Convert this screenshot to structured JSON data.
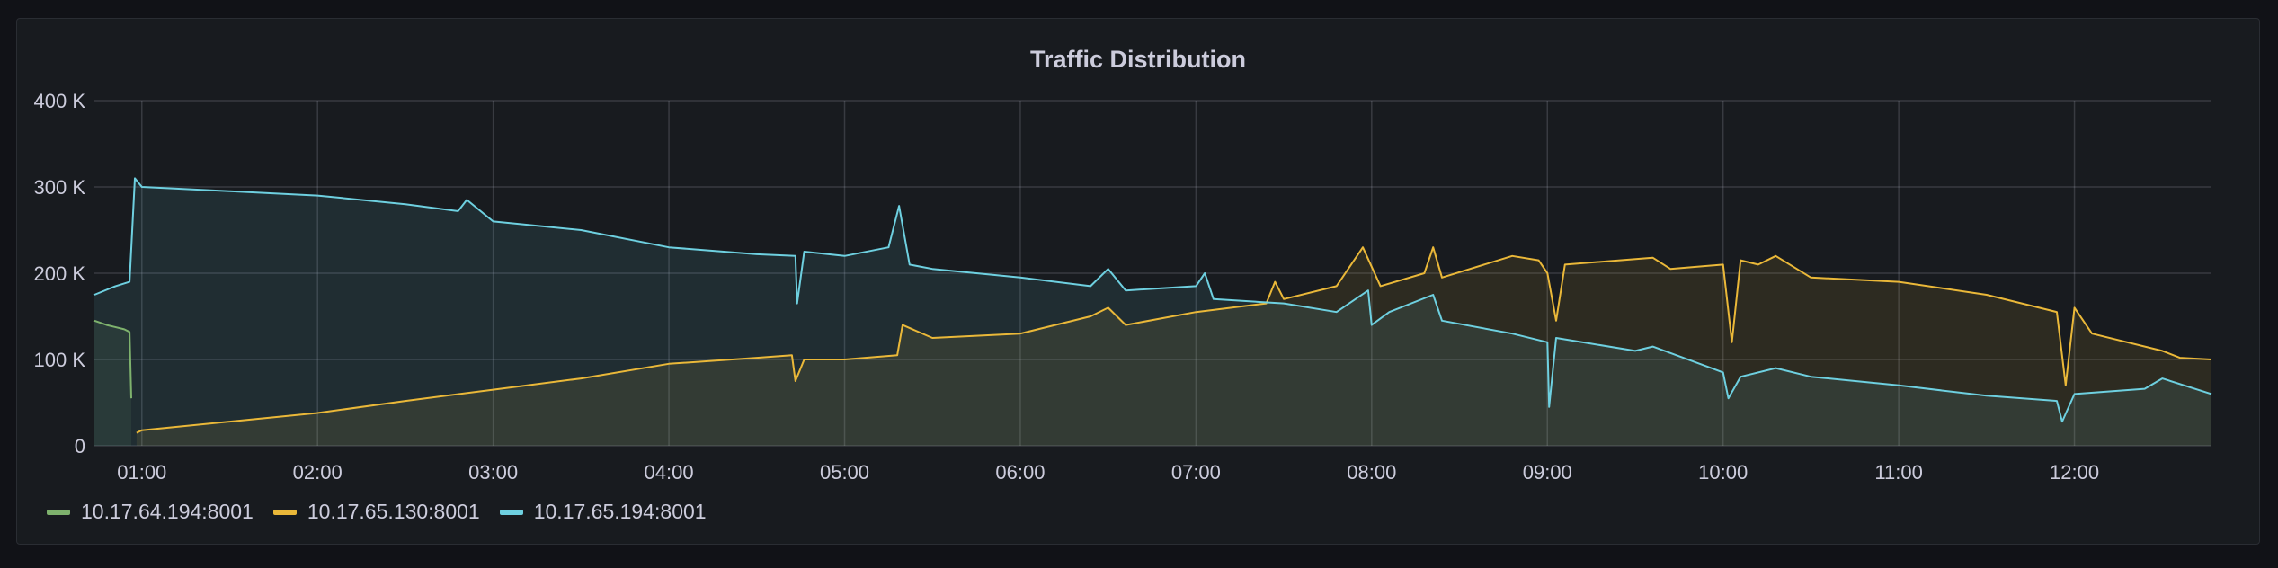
{
  "chart_data": {
    "type": "area",
    "title": "Traffic Distribution",
    "xlabel": "",
    "ylabel": "",
    "x_ticks": [
      "01:00",
      "02:00",
      "03:00",
      "04:00",
      "05:00",
      "06:00",
      "07:00",
      "08:00",
      "09:00",
      "10:00",
      "11:00",
      "12:00"
    ],
    "y_ticks": [
      "0",
      "100 K",
      "200 K",
      "300 K",
      "400 K"
    ],
    "xlim_hours": [
      0.73,
      12.78
    ],
    "ylim": [
      0,
      400000
    ],
    "grid": true,
    "legend_placement": "bottom-left",
    "series": [
      {
        "name": "10.17.64.194:8001",
        "color": "#7eb26d",
        "points": [
          [
            0.73,
            145000
          ],
          [
            0.8,
            140000
          ],
          [
            0.9,
            135000
          ],
          [
            0.93,
            132000
          ],
          [
            0.94,
            55000
          ]
        ]
      },
      {
        "name": "10.17.65.130:8001",
        "color": "#eab839",
        "points": [
          [
            0.97,
            15000
          ],
          [
            1.0,
            18000
          ],
          [
            1.5,
            28000
          ],
          [
            2.0,
            38000
          ],
          [
            2.5,
            52000
          ],
          [
            3.0,
            65000
          ],
          [
            3.5,
            78000
          ],
          [
            4.0,
            95000
          ],
          [
            4.5,
            102000
          ],
          [
            4.7,
            105000
          ],
          [
            4.72,
            75000
          ],
          [
            4.77,
            100000
          ],
          [
            5.0,
            100000
          ],
          [
            5.3,
            105000
          ],
          [
            5.33,
            140000
          ],
          [
            5.5,
            125000
          ],
          [
            6.0,
            130000
          ],
          [
            6.4,
            150000
          ],
          [
            6.5,
            160000
          ],
          [
            6.6,
            140000
          ],
          [
            7.0,
            155000
          ],
          [
            7.4,
            165000
          ],
          [
            7.45,
            190000
          ],
          [
            7.5,
            170000
          ],
          [
            7.8,
            185000
          ],
          [
            7.95,
            230000
          ],
          [
            8.05,
            185000
          ],
          [
            8.3,
            200000
          ],
          [
            8.35,
            230000
          ],
          [
            8.4,
            195000
          ],
          [
            8.8,
            220000
          ],
          [
            8.95,
            215000
          ],
          [
            9.0,
            200000
          ],
          [
            9.05,
            145000
          ],
          [
            9.1,
            210000
          ],
          [
            9.6,
            218000
          ],
          [
            9.7,
            205000
          ],
          [
            10.0,
            210000
          ],
          [
            10.05,
            120000
          ],
          [
            10.1,
            215000
          ],
          [
            10.2,
            210000
          ],
          [
            10.3,
            220000
          ],
          [
            10.5,
            195000
          ],
          [
            11.0,
            190000
          ],
          [
            11.5,
            175000
          ],
          [
            11.9,
            155000
          ],
          [
            11.95,
            70000
          ],
          [
            12.0,
            160000
          ],
          [
            12.1,
            130000
          ],
          [
            12.5,
            110000
          ],
          [
            12.6,
            102000
          ],
          [
            12.78,
            100000
          ]
        ]
      },
      {
        "name": "10.17.65.194:8001",
        "color": "#6ed0e0",
        "points": [
          [
            0.73,
            175000
          ],
          [
            0.85,
            185000
          ],
          [
            0.93,
            190000
          ],
          [
            0.96,
            310000
          ],
          [
            1.0,
            300000
          ],
          [
            1.5,
            295000
          ],
          [
            2.0,
            290000
          ],
          [
            2.5,
            280000
          ],
          [
            2.8,
            272000
          ],
          [
            2.85,
            285000
          ],
          [
            3.0,
            260000
          ],
          [
            3.5,
            250000
          ],
          [
            4.0,
            230000
          ],
          [
            4.5,
            222000
          ],
          [
            4.72,
            220000
          ],
          [
            4.73,
            165000
          ],
          [
            4.77,
            225000
          ],
          [
            5.0,
            220000
          ],
          [
            5.25,
            230000
          ],
          [
            5.31,
            278000
          ],
          [
            5.37,
            210000
          ],
          [
            5.5,
            205000
          ],
          [
            6.0,
            195000
          ],
          [
            6.4,
            185000
          ],
          [
            6.5,
            205000
          ],
          [
            6.6,
            180000
          ],
          [
            7.0,
            185000
          ],
          [
            7.05,
            200000
          ],
          [
            7.1,
            170000
          ],
          [
            7.5,
            165000
          ],
          [
            7.8,
            155000
          ],
          [
            7.98,
            180000
          ],
          [
            8.0,
            140000
          ],
          [
            8.1,
            155000
          ],
          [
            8.35,
            175000
          ],
          [
            8.4,
            145000
          ],
          [
            8.8,
            130000
          ],
          [
            9.0,
            120000
          ],
          [
            9.01,
            45000
          ],
          [
            9.05,
            125000
          ],
          [
            9.5,
            110000
          ],
          [
            9.6,
            115000
          ],
          [
            10.0,
            85000
          ],
          [
            10.03,
            55000
          ],
          [
            10.1,
            80000
          ],
          [
            10.3,
            90000
          ],
          [
            10.5,
            80000
          ],
          [
            11.0,
            70000
          ],
          [
            11.5,
            58000
          ],
          [
            11.9,
            52000
          ],
          [
            11.93,
            28000
          ],
          [
            12.0,
            60000
          ],
          [
            12.4,
            66000
          ],
          [
            12.5,
            78000
          ],
          [
            12.78,
            60000
          ]
        ]
      }
    ]
  }
}
